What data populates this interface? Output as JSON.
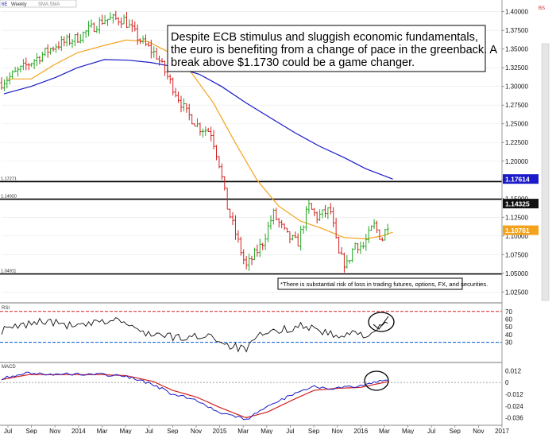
{
  "legend": {
    "symbol": "6E",
    "interval": "Weekly",
    "indicators": "SMA SMA"
  },
  "corner_tag": "BS",
  "annotation": {
    "lines": [
      "Despite ECB stimulus and sluggish economic fundamentals,",
      " the euro is benefiting from a change of pace in the greenback.  A",
      " break above $1.1730 could be a game changer."
    ]
  },
  "disclaimer": "*There is substantial risk of loss in trading futures, options, FX, and securities.",
  "price_ticks": [
    "1.40000",
    "1.37500",
    "1.35000",
    "1.32500",
    "1.30000",
    "1.27500",
    "1.25000",
    "1.22500",
    "1.20000",
    "1.17500",
    "1.15000",
    "1.12500",
    "1.10000",
    "1.07500",
    "1.05000",
    "1.02500"
  ],
  "price_badges": [
    {
      "label": "1.17614",
      "value": 1.17614,
      "color": "#1a1ac8",
      "text_color": "#ffffff"
    },
    {
      "label": "1.14325",
      "value": 1.14325,
      "color": "#111111",
      "text_color": "#ffffff"
    },
    {
      "label": "1.10761",
      "value": 1.10761,
      "color": "#f4a21c",
      "text_color": "#ffffff"
    }
  ],
  "hlines": [
    {
      "label": "1.17271",
      "value": 1.17271
    },
    {
      "label": "1.14920",
      "value": 1.1492
    },
    {
      "label": "1.04911",
      "value": 1.04911
    }
  ],
  "rsi": {
    "label": "RSI",
    "ticks": [
      "70",
      "60",
      "50",
      "40",
      "30"
    ],
    "upper": 70,
    "lower": 30
  },
  "macd": {
    "label": "MACD",
    "ticks": [
      "0.012",
      "0",
      "-0.012",
      "-0.024",
      "-0.036"
    ]
  },
  "x_labels": [
    "Jul",
    "Sep",
    "Nov",
    "2014",
    "Mar",
    "May",
    "Jul",
    "Sep",
    "Nov",
    "2015",
    "Mar",
    "May",
    "Jul",
    "Sep",
    "Nov",
    "2016",
    "Mar",
    "May",
    "Jul",
    "Sep",
    "Nov",
    "2017"
  ],
  "colors": {
    "up": "#22a822",
    "down": "#d42020",
    "sma_short": "#f4a21c",
    "sma_long": "#1a1ac8",
    "rsi_line": "#111111",
    "macd_line": "#1a1ac8",
    "signal_line": "#d42020"
  },
  "chart_data": {
    "type": "candlestick",
    "title": "",
    "ylim": [
      1.02,
      1.405
    ],
    "x_range": [
      "2013-06-24",
      "2017-01-02"
    ],
    "date_anchors": [
      [
        "2013-06-24",
        1.305
      ],
      [
        "2013-09-01",
        1.33
      ],
      [
        "2013-11-10",
        1.355
      ],
      [
        "2014-01-05",
        1.365
      ],
      [
        "2014-03-16",
        1.39
      ],
      [
        "2014-05-04",
        1.39
      ],
      [
        "2014-06-15",
        1.362
      ],
      [
        "2014-07-27",
        1.342
      ],
      [
        "2014-09-07",
        1.3
      ],
      [
        "2014-10-12",
        1.265
      ],
      [
        "2014-11-16",
        1.245
      ],
      [
        "2014-12-14",
        1.24
      ],
      [
        "2015-01-04",
        1.2
      ],
      [
        "2015-01-25",
        1.14
      ],
      [
        "2015-03-15",
        1.058
      ],
      [
        "2015-04-26",
        1.09
      ],
      [
        "2015-05-24",
        1.13
      ],
      [
        "2015-06-28",
        1.1
      ],
      [
        "2015-07-26",
        1.09
      ],
      [
        "2015-08-23",
        1.14
      ],
      [
        "2015-09-13",
        1.125
      ],
      [
        "2015-10-18",
        1.135
      ],
      [
        "2015-11-08",
        1.075
      ],
      [
        "2015-11-29",
        1.06
      ],
      [
        "2015-12-20",
        1.09
      ],
      [
        "2016-01-10",
        1.085
      ],
      [
        "2016-02-07",
        1.115
      ],
      [
        "2016-02-28",
        1.095
      ],
      [
        "2016-03-20",
        1.125
      ]
    ],
    "sma_short": [
      [
        "2013-07-07",
        1.31
      ],
      [
        "2013-09-08",
        1.31
      ],
      [
        "2013-11-10",
        1.33
      ],
      [
        "2014-01-05",
        1.345
      ],
      [
        "2014-03-16",
        1.355
      ],
      [
        "2014-05-11",
        1.362
      ],
      [
        "2014-07-06",
        1.36
      ],
      [
        "2014-08-31",
        1.345
      ],
      [
        "2014-10-26",
        1.318
      ],
      [
        "2014-12-21",
        1.278
      ],
      [
        "2015-02-15",
        1.225
      ],
      [
        "2015-04-12",
        1.175
      ],
      [
        "2015-06-07",
        1.14
      ],
      [
        "2015-08-02",
        1.12
      ],
      [
        "2015-09-27",
        1.11
      ],
      [
        "2015-11-22",
        1.098
      ],
      [
        "2016-01-17",
        1.096
      ],
      [
        "2016-02-28",
        1.1
      ],
      [
        "2016-03-27",
        1.105
      ]
    ],
    "sma_long": [
      [
        "2013-06-30",
        1.29
      ],
      [
        "2013-09-08",
        1.3
      ],
      [
        "2013-11-10",
        1.312
      ],
      [
        "2014-01-05",
        1.325
      ],
      [
        "2014-03-16",
        1.336
      ],
      [
        "2014-05-18",
        1.335
      ],
      [
        "2014-07-13",
        1.332
      ],
      [
        "2014-09-14",
        1.326
      ],
      [
        "2014-11-16",
        1.316
      ],
      [
        "2015-01-11",
        1.3
      ],
      [
        "2015-03-15",
        1.278
      ],
      [
        "2015-05-17",
        1.258
      ],
      [
        "2015-07-19",
        1.238
      ],
      [
        "2015-09-20",
        1.22
      ],
      [
        "2015-11-22",
        1.205
      ],
      [
        "2016-01-17",
        1.19
      ],
      [
        "2016-03-27",
        1.176
      ]
    ],
    "rsi_anchors": [
      [
        "2013-06-24",
        45
      ],
      [
        "2013-10-06",
        58
      ],
      [
        "2014-01-05",
        50
      ],
      [
        "2014-04-20",
        60
      ],
      [
        "2014-06-08",
        45
      ],
      [
        "2014-08-17",
        38
      ],
      [
        "2014-10-05",
        35
      ],
      [
        "2014-12-14",
        40
      ],
      [
        "2015-01-18",
        28
      ],
      [
        "2015-03-15",
        20
      ],
      [
        "2015-04-19",
        38
      ],
      [
        "2015-06-07",
        45
      ],
      [
        "2015-08-09",
        52
      ],
      [
        "2015-09-20",
        46
      ],
      [
        "2015-11-08",
        36
      ],
      [
        "2015-12-20",
        42
      ],
      [
        "2016-01-24",
        40
      ],
      [
        "2016-02-21",
        48
      ],
      [
        "2016-03-20",
        55
      ]
    ],
    "macd_anchors": [
      [
        "2013-06-24",
        0.004
      ],
      [
        "2013-09-01",
        0.01
      ],
      [
        "2013-11-10",
        0.008
      ],
      [
        "2014-01-05",
        0.009
      ],
      [
        "2014-03-16",
        0.008
      ],
      [
        "2014-05-11",
        0.006
      ],
      [
        "2014-07-20",
        -0.002
      ],
      [
        "2014-09-07",
        -0.012
      ],
      [
        "2014-11-09",
        -0.018
      ],
      [
        "2015-01-04",
        -0.03
      ],
      [
        "2015-03-15",
        -0.038
      ],
      [
        "2015-05-10",
        -0.025
      ],
      [
        "2015-07-12",
        -0.012
      ],
      [
        "2015-09-06",
        -0.004
      ],
      [
        "2015-11-01",
        -0.006
      ],
      [
        "2016-01-03",
        -0.004
      ],
      [
        "2016-02-21",
        0.001
      ],
      [
        "2016-03-27",
        0.004
      ]
    ],
    "signal_anchors": [
      [
        "2013-06-24",
        0.003
      ],
      [
        "2013-09-01",
        0.008
      ],
      [
        "2013-11-10",
        0.008
      ],
      [
        "2014-01-05",
        0.008
      ],
      [
        "2014-03-16",
        0.008
      ],
      [
        "2014-05-11",
        0.007
      ],
      [
        "2014-07-20",
        0.001
      ],
      [
        "2014-09-07",
        -0.008
      ],
      [
        "2014-11-09",
        -0.015
      ],
      [
        "2015-01-04",
        -0.025
      ],
      [
        "2015-03-15",
        -0.036
      ],
      [
        "2015-05-10",
        -0.03
      ],
      [
        "2015-07-12",
        -0.018
      ],
      [
        "2015-09-06",
        -0.008
      ],
      [
        "2015-11-01",
        -0.006
      ],
      [
        "2016-01-03",
        -0.005
      ],
      [
        "2016-02-21",
        -0.001
      ],
      [
        "2016-03-27",
        0.002
      ]
    ]
  }
}
